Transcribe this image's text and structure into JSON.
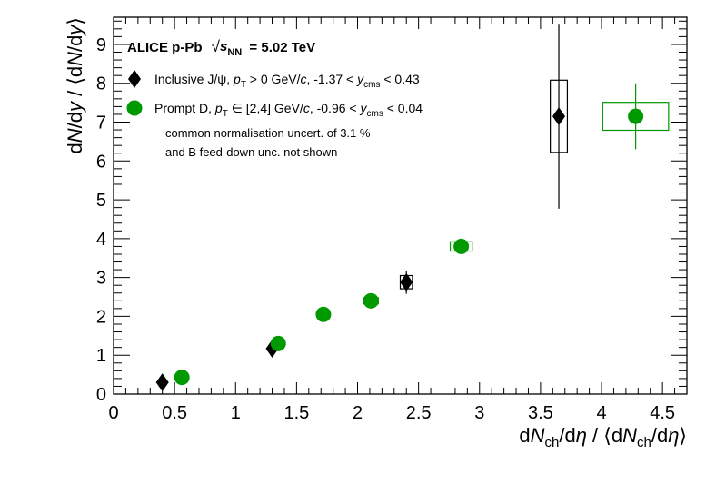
{
  "chart_data": {
    "type": "scatter",
    "title": "ALICE p-Pb √s_NN = 5.02 TeV",
    "title_parts": {
      "experiment": "ALICE p-Pb",
      "sqrt": "√",
      "s": "s",
      "sub": "NN",
      "energy": "= 5.02 TeV"
    },
    "xlabel": "dN_ch/dη / ⟨dN_ch/dη⟩",
    "xlabel_parts": {
      "d1": "d",
      "n1": "N",
      "sub1": "ch",
      "rest1": "/d",
      "eta1": "η",
      "mid": " / ⟨d",
      "n2": "N",
      "sub2": "ch",
      "rest2": "/d",
      "eta2": "η",
      "close": "⟩"
    },
    "ylabel": "dN/dy / ⟨dN/dy⟩",
    "ylabel_parts": {
      "d1": "d",
      "n1": "N",
      "mid1": "/d",
      "y1": "y",
      "sep": " / ⟨d",
      "n2": "N",
      "mid2": "/d",
      "y2": "y",
      "close": "⟩"
    },
    "xlim": [
      0,
      4.7
    ],
    "ylim": [
      0,
      9.7
    ],
    "x_ticks": [
      0,
      0.5,
      1,
      1.5,
      2,
      2.5,
      3,
      3.5,
      4,
      4.5
    ],
    "x_tick_labels": [
      "0",
      "0.5",
      "1",
      "1.5",
      "2",
      "2.5",
      "3",
      "3.5",
      "4",
      "4.5"
    ],
    "y_ticks": [
      0,
      1,
      2,
      3,
      4,
      5,
      6,
      7,
      8,
      9
    ],
    "y_tick_labels": [
      "0",
      "1",
      "2",
      "3",
      "4",
      "5",
      "6",
      "7",
      "8",
      "9"
    ],
    "grid": false,
    "legend_position": "top-left",
    "series": [
      {
        "name": "Inclusive J/ψ, p_T > 0 GeV/c, -1.37 < y_cms < 0.43",
        "label_parts": {
          "a": "Inclusive J/ψ, ",
          "p": "p",
          "t": "T",
          "b": " > 0 GeV/",
          "c": "c",
          "d": ", -1.37 < ",
          "y": "y",
          "cms": "cms",
          "e": " < 0.43"
        },
        "marker": "diamond",
        "color": "#000000",
        "points": [
          {
            "x": 0.4,
            "y": 0.3,
            "stat_err": 0.1,
            "syst_dx": 0.0,
            "syst_dy": 0.0
          },
          {
            "x": 1.3,
            "y": 1.17,
            "stat_err": 0.1,
            "syst_dx": 0.03,
            "syst_dy": 0.05
          },
          {
            "x": 2.4,
            "y": 2.88,
            "stat_err": 0.3,
            "syst_dx": 0.05,
            "syst_dy": 0.17
          },
          {
            "x": 3.65,
            "y": 7.15,
            "stat_err": 2.38,
            "syst_dx": 0.07,
            "syst_dy": 0.93
          }
        ]
      },
      {
        "name": "Prompt D, p_T ∈ [2,4] GeV/c, -0.96 < y_cms < 0.04",
        "label_parts": {
          "a": "Prompt D, ",
          "p": "p",
          "t": "T",
          "b": " ∈ [2,4] GeV/",
          "c": "c",
          "d": ", -0.96 < ",
          "y": "y",
          "cms": "cms",
          "e": " < 0.04"
        },
        "marker": "circle",
        "color": "#009900",
        "points": [
          {
            "x": 0.56,
            "y": 0.43,
            "stat_err": 0.0,
            "syst_dx": 0.0,
            "syst_dy": 0.0
          },
          {
            "x": 1.35,
            "y": 1.3,
            "stat_err": 0.0,
            "syst_dx": 0.05,
            "syst_dy": 0.05
          },
          {
            "x": 1.72,
            "y": 2.05,
            "stat_err": 0.0,
            "syst_dx": 0.05,
            "syst_dy": 0.07
          },
          {
            "x": 2.11,
            "y": 2.4,
            "stat_err": 0.0,
            "syst_dx": 0.06,
            "syst_dy": 0.08
          },
          {
            "x": 2.85,
            "y": 3.8,
            "stat_err": 0.0,
            "syst_dx": 0.09,
            "syst_dy": 0.12
          },
          {
            "x": 4.28,
            "y": 7.15,
            "stat_err": 0.85,
            "syst_dx": 0.27,
            "syst_dy": 0.36
          }
        ]
      }
    ],
    "annotations": [
      "common normalisation uncert. of 3.1 %",
      "and B feed-down unc. not shown"
    ]
  }
}
